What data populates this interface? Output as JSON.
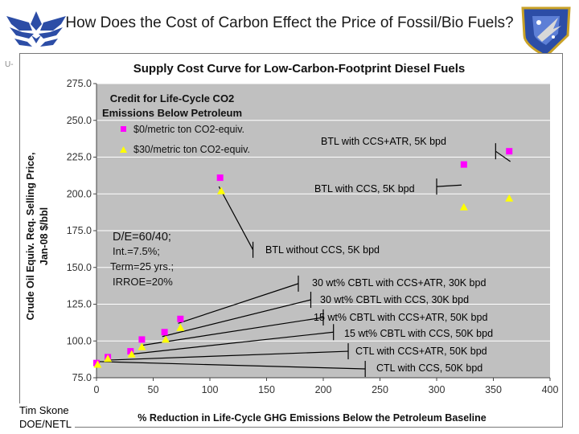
{
  "slide_title": "How Does the Cost of Carbon Effect the Price of Fossil/Bio Fuels?",
  "side_mark": "U-",
  "credit": {
    "line1": "Tim Skone",
    "line2": "DOE/NETL"
  },
  "colors": {
    "magenta": "#ff00ff",
    "yellow": "#ffff00",
    "plot_bg": "#c0c0c0",
    "frame_bg": "#ffffff"
  },
  "chart_data": {
    "type": "scatter",
    "title": "Supply Cost Curve for Low-Carbon-Footprint Diesel Fuels",
    "xlabel": "% Reduction in Life-Cycle GHG Emissions Below the Petroleum Baseline",
    "ylabel_lines": [
      "Crude Oil Equiv. Req. Selling Price,",
      "Jan-08 $/bbl"
    ],
    "xlim": [
      0,
      400
    ],
    "ylim": [
      75,
      275
    ],
    "x_ticks": [
      0,
      50,
      100,
      150,
      200,
      250,
      300,
      350,
      400
    ],
    "y_ticks": [
      75.0,
      100.0,
      125.0,
      150.0,
      175.0,
      200.0,
      225.0,
      250.0,
      275.0
    ],
    "y_tick_labels": [
      "75.0",
      "100.0",
      "125.0",
      "150.0",
      "175.0",
      "200.0",
      "225.0",
      "250.0",
      "275.0"
    ],
    "legend": {
      "title_lines": [
        "Credit for Life-Cycle CO2",
        "Emissions Below Petroleum"
      ],
      "position": "top-left"
    },
    "series": [
      {
        "name": "$0/metric ton CO2-equiv.",
        "marker": "square",
        "color": "#ff00ff",
        "points": [
          {
            "x": 0,
            "y": 85
          },
          {
            "x": 10,
            "y": 89
          },
          {
            "x": 30,
            "y": 93
          },
          {
            "x": 40,
            "y": 101
          },
          {
            "x": 60,
            "y": 106
          },
          {
            "x": 74,
            "y": 115
          },
          {
            "x": 109,
            "y": 211
          },
          {
            "x": 324,
            "y": 220
          },
          {
            "x": 364,
            "y": 229
          }
        ]
      },
      {
        "name": "$30/metric ton CO2-equiv.",
        "marker": "triangle",
        "color": "#ffff00",
        "points": [
          {
            "x": 1,
            "y": 84
          },
          {
            "x": 10,
            "y": 88
          },
          {
            "x": 31,
            "y": 91
          },
          {
            "x": 40,
            "y": 96
          },
          {
            "x": 61,
            "y": 101
          },
          {
            "x": 74,
            "y": 109
          },
          {
            "x": 110,
            "y": 202
          },
          {
            "x": 324,
            "y": 191
          },
          {
            "x": 364,
            "y": 197
          }
        ]
      }
    ],
    "assumptions": [
      "D/E=60/40;",
      "Int.=7.5%;",
      "Term=25 yrs.;",
      "IRROE=20%"
    ],
    "annotations": [
      {
        "text": "BTL with CCS+ATR, 5K bpd",
        "point": {
          "x": 365,
          "y": 222
        },
        "tail": {
          "x": 352,
          "y": 229
        },
        "bracket": {
          "x": 352,
          "y": 229
        }
      },
      {
        "text": "BTL with CCS, 5K bpd",
        "point": {
          "x": 322,
          "y": 206
        },
        "tail": {
          "x": 300,
          "y": 205
        },
        "bracket": {
          "x": 300,
          "y": 205
        }
      },
      {
        "text": "BTL without CCS, 5K bpd",
        "point": {
          "x": 108,
          "y": 205
        },
        "tail": {
          "x": 138,
          "y": 162
        },
        "bracket": {
          "x": 138,
          "y": 162
        }
      },
      {
        "text": "30 wt% CBTL with CCS+ATR, 30K bpd",
        "point": {
          "x": 72,
          "y": 112
        },
        "tail": {
          "x": 178,
          "y": 139
        },
        "bracket": {
          "x": 178,
          "y": 139
        }
      },
      {
        "text": "30 wt% CBTL with CCS, 30K bpd",
        "point": {
          "x": 58,
          "y": 103
        },
        "tail": {
          "x": 189,
          "y": 128
        },
        "bracket": {
          "x": 189,
          "y": 128
        }
      },
      {
        "text": "15 wt% CBTL with CCS+ATR, 50K bpd",
        "point": {
          "x": 40,
          "y": 97
        },
        "tail": {
          "x": 200,
          "y": 116
        },
        "bracket": {
          "x": 200,
          "y": 116
        }
      },
      {
        "text": "15 wt% CBTL with CCS, 50K bpd",
        "point": {
          "x": 30,
          "y": 91
        },
        "tail": {
          "x": 209,
          "y": 106
        },
        "bracket": {
          "x": 209,
          "y": 106
        }
      },
      {
        "text": "CTL with CCS+ATR, 50K bpd",
        "point": {
          "x": 10,
          "y": 87
        },
        "tail": {
          "x": 222,
          "y": 93
        },
        "bracket": {
          "x": 222,
          "y": 93
        }
      },
      {
        "text": "CTL with CCS, 50K bpd",
        "point": {
          "x": 1,
          "y": 86
        },
        "tail": {
          "x": 237,
          "y": 81
        },
        "bracket": {
          "x": 237,
          "y": 81
        }
      }
    ]
  }
}
